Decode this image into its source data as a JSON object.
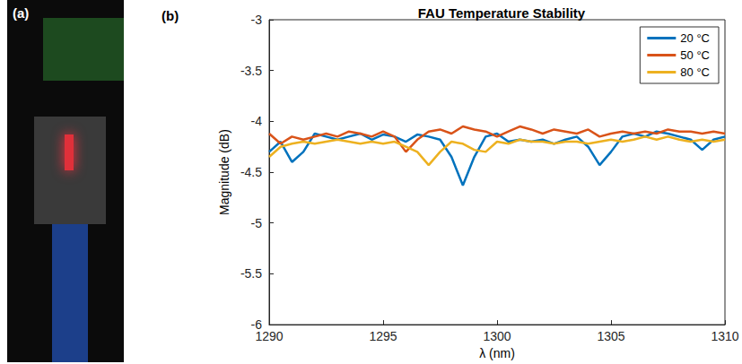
{
  "photo_panel": {
    "label": "(a)"
  },
  "chart_data": {
    "type": "line",
    "panel_label": "(b)",
    "title": "FAU Temperature Stability",
    "x_label": "λ (nm)",
    "y_label": "Magnitude (dB)",
    "x": [
      1290,
      1290.5,
      1291,
      1291.5,
      1292,
      1292.5,
      1293,
      1293.5,
      1294,
      1294.5,
      1295,
      1295.5,
      1296,
      1296.5,
      1297,
      1297.5,
      1298,
      1298.5,
      1299,
      1299.5,
      1300,
      1300.5,
      1301,
      1301.5,
      1302,
      1302.5,
      1303,
      1303.5,
      1304,
      1304.5,
      1305,
      1305.5,
      1306,
      1306.5,
      1307,
      1307.5,
      1308,
      1308.5,
      1309,
      1309.5,
      1310
    ],
    "series": [
      {
        "name": "20 °C",
        "color": "#0072BD",
        "values": [
          -4.3,
          -4.2,
          -4.4,
          -4.3,
          -4.12,
          -4.15,
          -4.18,
          -4.15,
          -4.12,
          -4.18,
          -4.13,
          -4.15,
          -4.2,
          -4.13,
          -4.15,
          -4.18,
          -4.35,
          -4.63,
          -4.35,
          -4.15,
          -4.12,
          -4.2,
          -4.18,
          -4.2,
          -4.18,
          -4.22,
          -4.18,
          -4.15,
          -4.25,
          -4.43,
          -4.3,
          -4.15,
          -4.12,
          -4.15,
          -4.1,
          -4.12,
          -4.15,
          -4.18,
          -4.28,
          -4.18,
          -4.15
        ]
      },
      {
        "name": "50 °C",
        "color": "#D95319",
        "values": [
          -4.12,
          -4.22,
          -4.15,
          -4.18,
          -4.15,
          -4.12,
          -4.15,
          -4.1,
          -4.12,
          -4.15,
          -4.1,
          -4.15,
          -4.3,
          -4.18,
          -4.1,
          -4.08,
          -4.12,
          -4.05,
          -4.08,
          -4.1,
          -4.15,
          -4.1,
          -4.05,
          -4.08,
          -4.12,
          -4.08,
          -4.1,
          -4.12,
          -4.08,
          -4.15,
          -4.12,
          -4.1,
          -4.12,
          -4.1,
          -4.12,
          -4.08,
          -4.1,
          -4.1,
          -4.12,
          -4.1,
          -4.12
        ]
      },
      {
        "name": "80 °C",
        "color": "#EDB120",
        "values": [
          -4.35,
          -4.25,
          -4.22,
          -4.2,
          -4.22,
          -4.2,
          -4.18,
          -4.2,
          -4.22,
          -4.2,
          -4.22,
          -4.2,
          -4.25,
          -4.3,
          -4.43,
          -4.3,
          -4.2,
          -4.22,
          -4.28,
          -4.3,
          -4.2,
          -4.22,
          -4.18,
          -4.2,
          -4.2,
          -4.22,
          -4.2,
          -4.2,
          -4.22,
          -4.2,
          -4.18,
          -4.2,
          -4.18,
          -4.15,
          -4.18,
          -4.15,
          -4.18,
          -4.2,
          -4.18,
          -4.2,
          -4.18
        ]
      }
    ],
    "xlim": [
      1290,
      1310
    ],
    "xticks": [
      1290,
      1295,
      1300,
      1305,
      1310
    ],
    "ylim": [
      -6,
      -3
    ],
    "yticks": [
      -6,
      -5.5,
      -5,
      -4.5,
      -4,
      -3.5,
      -3
    ],
    "grid": false,
    "legend": "upper right"
  }
}
